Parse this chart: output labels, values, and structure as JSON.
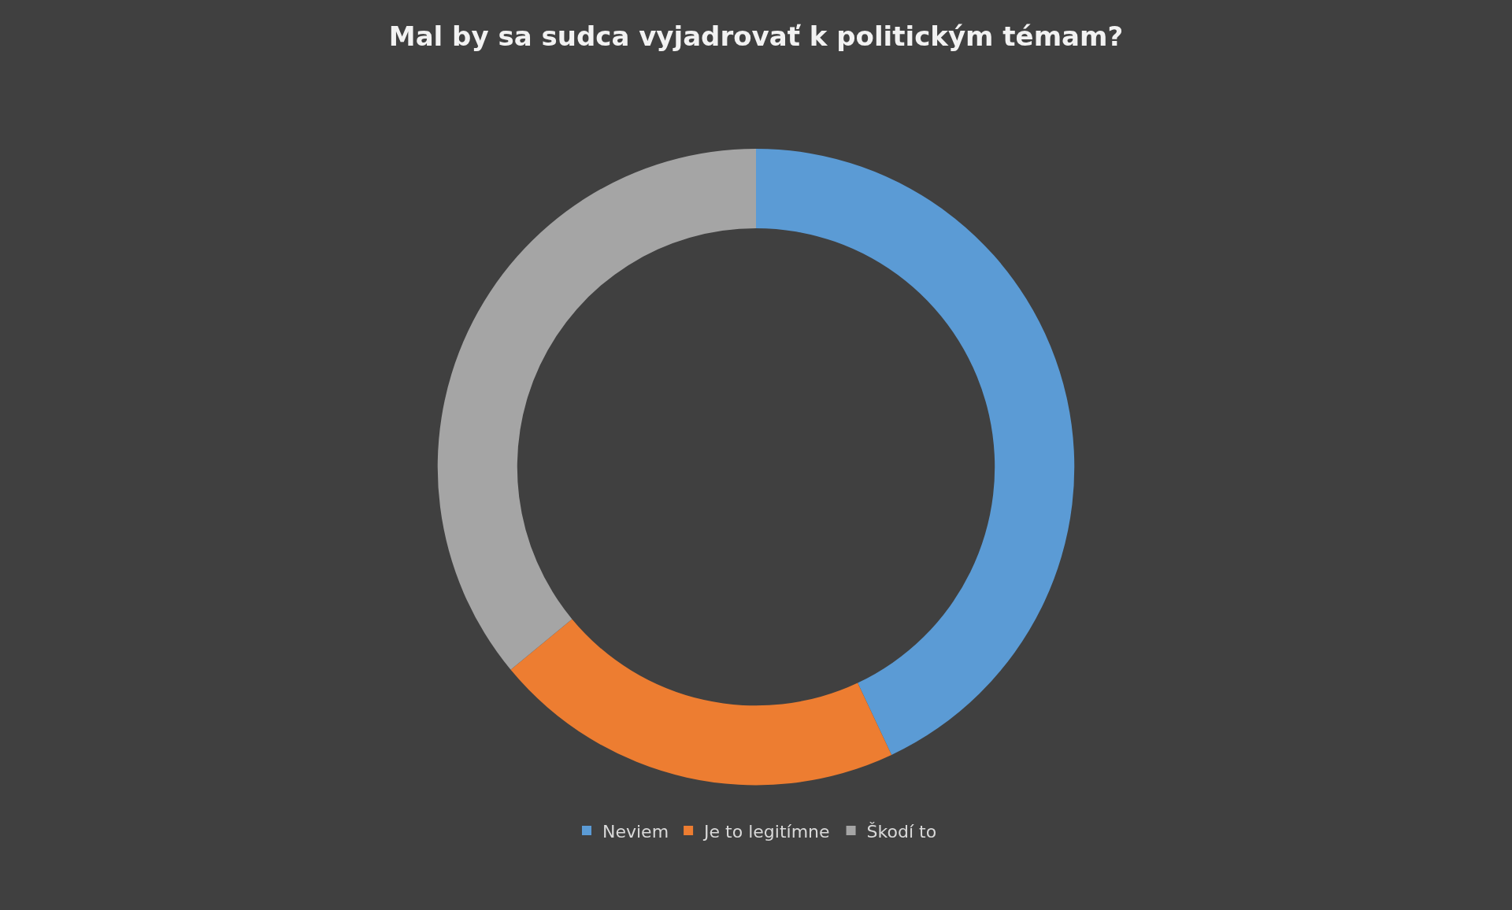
{
  "chart_data": {
    "type": "donut",
    "title": "Mal by sa sudca vyjadrovať k politickým témam?",
    "categories": [
      "Neviem",
      "Je to legitímne",
      "Škodí to"
    ],
    "values": [
      43,
      21,
      36
    ],
    "colors": [
      "#5b9bd5",
      "#ed7d31",
      "#a5a5a5"
    ],
    "legend": "bottom"
  }
}
